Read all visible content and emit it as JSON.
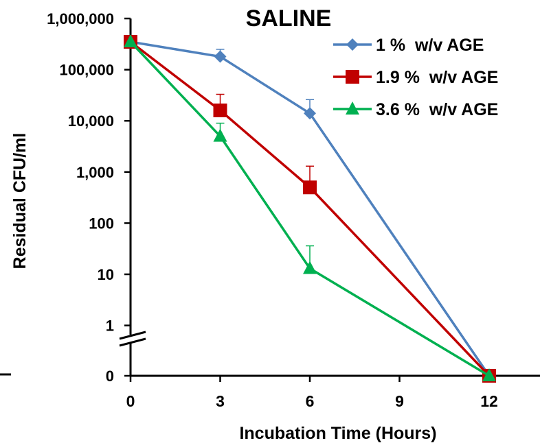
{
  "chart_data": {
    "type": "line",
    "title": "SALINE",
    "xlabel": "Incubation  Time (Hours)",
    "ylabel": "Residual CFU/ml",
    "y_scale": "log",
    "y_axis_break": true,
    "x_ticks": [
      "0",
      "3",
      "6",
      "9",
      "12"
    ],
    "y_ticks": [
      "1,000,000",
      "100,000",
      "10,000",
      "1,000",
      "100",
      "10",
      "1",
      "0"
    ],
    "xlim": [
      0,
      12
    ],
    "legend_position": "top-right",
    "x": [
      0,
      3,
      6,
      12
    ],
    "series": [
      {
        "name": "1 %  w/v AGE",
        "color": "#4f81bd",
        "marker": "diamond",
        "values": [
          350000,
          180000,
          14000,
          0
        ],
        "error_upper": [
          null,
          250000,
          26000,
          null
        ]
      },
      {
        "name": "1.9 %  w/v AGE",
        "color": "#c00000",
        "marker": "square",
        "values": [
          350000,
          16000,
          500,
          0
        ],
        "error_upper": [
          null,
          33000,
          1300,
          null
        ]
      },
      {
        "name": "3.6 %  w/v AGE",
        "color": "#00b050",
        "marker": "triangle",
        "values": [
          350000,
          5000,
          13,
          0
        ],
        "error_upper": [
          null,
          9000,
          36,
          null
        ]
      }
    ]
  }
}
